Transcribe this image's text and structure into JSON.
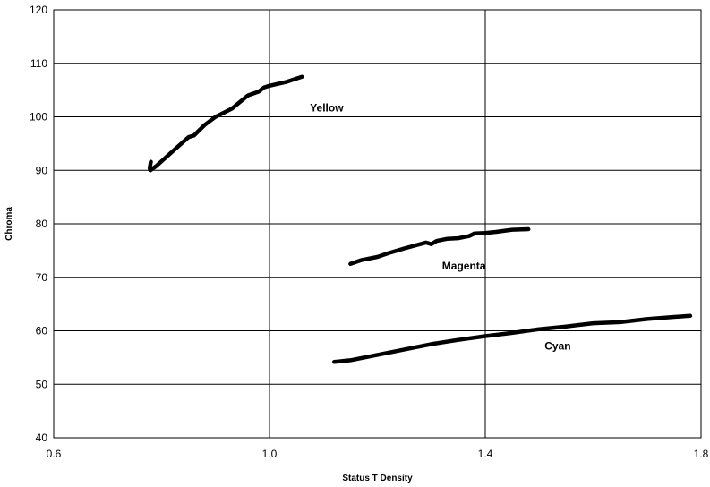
{
  "chart_data": {
    "type": "line",
    "title": "",
    "xlabel": "Status T Density",
    "ylabel": "Chroma",
    "xlim": [
      0.6,
      1.8
    ],
    "ylim": [
      40,
      120
    ],
    "xticks": [
      "0.6",
      "1.0",
      "1.4",
      "1.8"
    ],
    "yticks": [
      "40",
      "50",
      "60",
      "70",
      "80",
      "90",
      "100",
      "110",
      "120"
    ],
    "grid": true,
    "legend": "none",
    "line_color": "#000000",
    "series": [
      {
        "name": "Yellow",
        "points": [
          [
            0.78,
            91.6
          ],
          [
            0.778,
            90.4
          ],
          [
            0.779,
            90.0
          ],
          [
            0.79,
            90.8
          ],
          [
            0.82,
            93.5
          ],
          [
            0.85,
            96.2
          ],
          [
            0.86,
            96.5
          ],
          [
            0.88,
            98.5
          ],
          [
            0.9,
            100.0
          ],
          [
            0.93,
            101.5
          ],
          [
            0.96,
            104.0
          ],
          [
            0.98,
            104.7
          ],
          [
            0.99,
            105.5
          ],
          [
            1.0,
            105.8
          ],
          [
            1.03,
            106.5
          ],
          [
            1.06,
            107.5
          ]
        ]
      },
      {
        "name": "Magenta",
        "points": [
          [
            1.15,
            72.5
          ],
          [
            1.17,
            73.2
          ],
          [
            1.2,
            73.8
          ],
          [
            1.22,
            74.5
          ],
          [
            1.25,
            75.4
          ],
          [
            1.29,
            76.5
          ],
          [
            1.3,
            76.2
          ],
          [
            1.31,
            76.8
          ],
          [
            1.33,
            77.2
          ],
          [
            1.35,
            77.3
          ],
          [
            1.37,
            77.7
          ],
          [
            1.38,
            78.2
          ],
          [
            1.4,
            78.3
          ],
          [
            1.42,
            78.5
          ],
          [
            1.45,
            78.9
          ],
          [
            1.48,
            79.0
          ]
        ]
      },
      {
        "name": "Cyan",
        "points": [
          [
            1.12,
            54.2
          ],
          [
            1.15,
            54.5
          ],
          [
            1.2,
            55.5
          ],
          [
            1.25,
            56.5
          ],
          [
            1.3,
            57.5
          ],
          [
            1.35,
            58.3
          ],
          [
            1.4,
            59.0
          ],
          [
            1.45,
            59.6
          ],
          [
            1.5,
            60.3
          ],
          [
            1.55,
            60.8
          ],
          [
            1.6,
            61.4
          ],
          [
            1.65,
            61.6
          ],
          [
            1.7,
            62.2
          ],
          [
            1.75,
            62.6
          ],
          [
            1.78,
            62.8
          ]
        ]
      }
    ],
    "annotations": [
      {
        "text": "Yellow",
        "x": 1.075,
        "y": 101
      },
      {
        "text": "Magenta",
        "x": 1.32,
        "y": 71.5
      },
      {
        "text": "Cyan",
        "x": 1.51,
        "y": 56.5
      }
    ]
  }
}
